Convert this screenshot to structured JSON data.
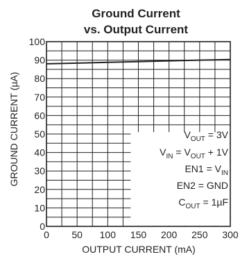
{
  "chart_data": {
    "type": "line",
    "title_line1": "Ground Current",
    "title_line2": "vs. Output Current",
    "xlabel": "OUTPUT CURRENT (mA)",
    "ylabel": "GROUND CURRENT (µA)",
    "xlim": [
      0,
      300
    ],
    "ylim": [
      0,
      100
    ],
    "xticks": [
      0,
      50,
      100,
      150,
      200,
      250,
      300
    ],
    "yticks": [
      0,
      10,
      20,
      30,
      40,
      50,
      60,
      70,
      80,
      90,
      100
    ],
    "grid": true,
    "series": [
      {
        "x": [
          0,
          50,
          100,
          150,
          200,
          250,
          300
        ],
        "y": [
          88,
          88.4,
          88.8,
          89.2,
          89.6,
          90.0,
          90.3
        ]
      }
    ],
    "annotations": [
      {
        "main": "V",
        "sub": "OUT",
        "rest": " = 3V"
      },
      {
        "main": "V",
        "sub": "IN",
        "rest": " = V",
        "sub2": "OUT",
        "rest2": " + 1V"
      },
      {
        "main": "EN1 = V",
        "sub": "IN",
        "rest": ""
      },
      {
        "main": "EN2 = GND",
        "sub": "",
        "rest": ""
      },
      {
        "main": "C",
        "sub": "OUT",
        "rest": " = 1µF"
      }
    ],
    "colors": {
      "line": "#231f20",
      "grid": "#231f20",
      "annotation_box": "#ffffff"
    }
  }
}
